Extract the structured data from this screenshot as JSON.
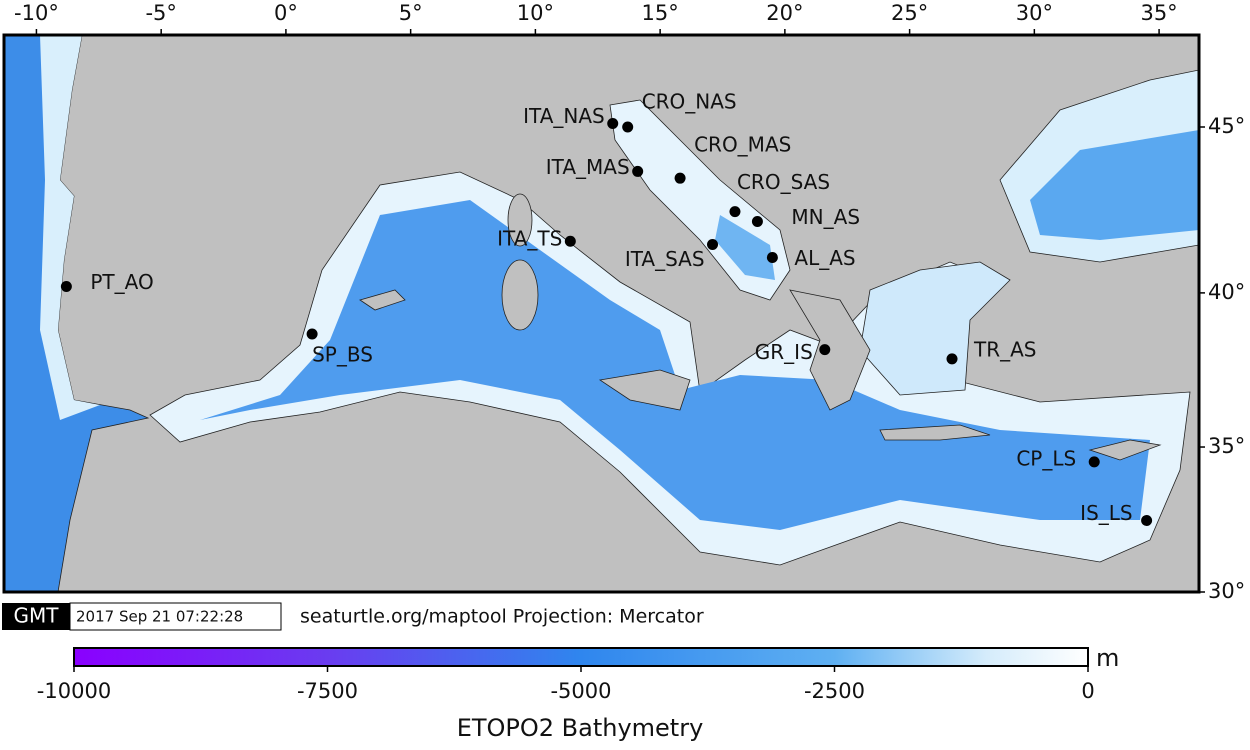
{
  "map": {
    "xlim": [
      -11.3,
      36.6
    ],
    "ylim": [
      30,
      47.6
    ],
    "xticks": [
      {
        "value": -10,
        "label": "-10°"
      },
      {
        "value": -5,
        "label": "-5°"
      },
      {
        "value": 0,
        "label": "0°"
      },
      {
        "value": 5,
        "label": "5°"
      },
      {
        "value": 10,
        "label": "10°"
      },
      {
        "value": 15,
        "label": "15°"
      },
      {
        "value": 20,
        "label": "20°"
      },
      {
        "value": 25,
        "label": "25°"
      },
      {
        "value": 30,
        "label": "30°"
      },
      {
        "value": 35,
        "label": "35°"
      }
    ],
    "yticks": [
      {
        "value": 30,
        "label": "30°"
      },
      {
        "value": 35,
        "label": "35°"
      },
      {
        "value": 40,
        "label": "40°"
      },
      {
        "value": 45,
        "label": "45°"
      }
    ],
    "points": [
      {
        "name": "PT_AO",
        "lon": -8.8,
        "lat": 40.2
      },
      {
        "name": "SP_BS",
        "lon": 1.05,
        "lat": 38.7
      },
      {
        "name": "ITA_TS",
        "lon": 11.4,
        "lat": 41.6
      },
      {
        "name": "ITA_NAS",
        "lon": 13.1,
        "lat": 45.1
      },
      {
        "name": "CRO_NAS",
        "lon": 13.7,
        "lat": 45.0
      },
      {
        "name": "ITA_MAS",
        "lon": 14.1,
        "lat": 43.7
      },
      {
        "name": "CRO_MAS",
        "lon": 15.8,
        "lat": 43.5
      },
      {
        "name": "CRO_SAS",
        "lon": 18.0,
        "lat": 42.5
      },
      {
        "name": "MN_AS",
        "lon": 18.9,
        "lat": 42.2
      },
      {
        "name": "ITA_SAS",
        "lon": 17.1,
        "lat": 41.5
      },
      {
        "name": "AL_AS",
        "lon": 19.5,
        "lat": 41.1
      },
      {
        "name": "GR_IS",
        "lon": 21.6,
        "lat": 38.2
      },
      {
        "name": "TR_AS",
        "lon": 26.7,
        "lat": 37.9
      },
      {
        "name": "CP_LS",
        "lon": 32.4,
        "lat": 34.5
      },
      {
        "name": "IS_LS",
        "lon": 34.5,
        "lat": 32.5
      }
    ]
  },
  "stamp": {
    "badge": "GMT",
    "timestamp": "2017 Sep 21 07:22:28",
    "credit": "seaturtle.org/maptool Projection: Mercator"
  },
  "colorbar": {
    "lim": [
      -10000,
      0
    ],
    "ticks": [
      -10000,
      -7500,
      -5000,
      -2500,
      0
    ],
    "unit": "m",
    "label": "ETOPO2 Bathymetry"
  }
}
